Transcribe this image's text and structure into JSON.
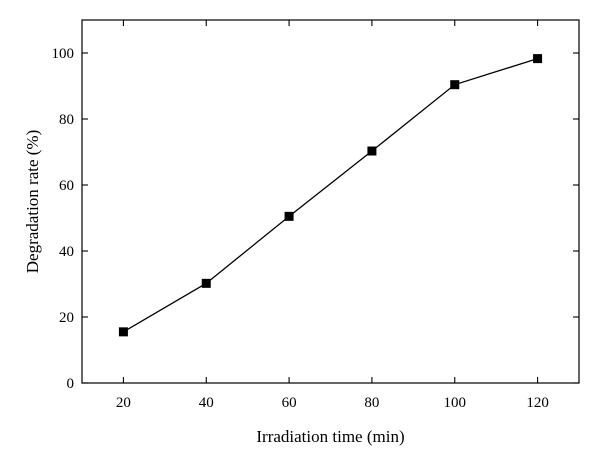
{
  "chart_data": {
    "type": "line",
    "xlabel": "Irradiation time (min)",
    "ylabel": "Degradation rate (%)",
    "xlim": [
      10,
      130
    ],
    "ylim": [
      0,
      110
    ],
    "x_ticks": [
      20,
      40,
      60,
      80,
      100,
      120
    ],
    "y_ticks": [
      0,
      20,
      40,
      60,
      80,
      100
    ],
    "grid": false,
    "marker": "square",
    "series": [
      {
        "x": [
          20,
          40,
          60,
          80,
          100,
          120
        ],
        "values": [
          15.5,
          30.2,
          50.5,
          70.3,
          90.4,
          98.3
        ]
      }
    ]
  }
}
